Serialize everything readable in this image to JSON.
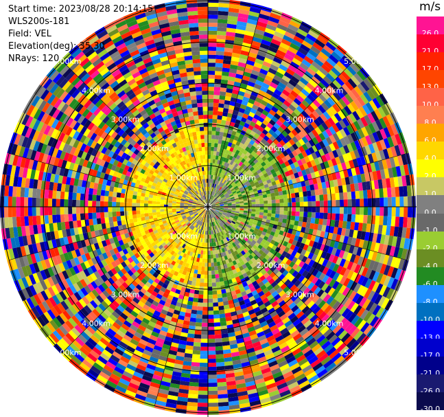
{
  "header": {
    "start_time": "Start time: 2023/08/28 20:14:15",
    "instrument": "WLS200s-181",
    "field": "Field: VEL",
    "elevation": "Elevation(deg): 35.30",
    "nrays": "NRays: 120"
  },
  "colorbar": {
    "unit": "m/s",
    "levels": [
      {
        "label": "26.0",
        "color": "#ff1493"
      },
      {
        "label": "21.0",
        "color": "#ff0033"
      },
      {
        "label": "17.0",
        "color": "#ff2200"
      },
      {
        "label": "13.0",
        "color": "#ff4500"
      },
      {
        "label": "10.0",
        "color": "#ff6347"
      },
      {
        "label": "8.0",
        "color": "#ff7f50"
      },
      {
        "label": "6.0",
        "color": "#ffa500"
      },
      {
        "label": "4.0",
        "color": "#ffd700"
      },
      {
        "label": "2.0",
        "color": "#ffff00"
      },
      {
        "label": "1.0",
        "color": "#c8c864"
      },
      {
        "label": "0.0",
        "color": "#808080"
      },
      {
        "label": "-1.0",
        "color": "#696969"
      },
      {
        "label": "-2.0",
        "color": "#9acd32"
      },
      {
        "label": "-4.0",
        "color": "#6b8e23"
      },
      {
        "label": "-6.0",
        "color": "#228b22"
      },
      {
        "label": "-8.0",
        "color": "#1e90ff"
      },
      {
        "label": "-10.0",
        "color": "#0070c0"
      },
      {
        "label": "-13.0",
        "color": "#0000ff"
      },
      {
        "label": "-17.0",
        "color": "#0000cd"
      },
      {
        "label": "-21.0",
        "color": "#00008b"
      },
      {
        "label": "-26.0",
        "color": "#191970"
      },
      {
        "label": "-30.0",
        "color": "#0b0b4d"
      }
    ]
  },
  "chart_data": {
    "type": "heatmap",
    "projection": "polar-ppi",
    "field": "VEL",
    "elevation_deg": 35.3,
    "n_rays": 120,
    "range_rings": [
      "1.00km",
      "2.00km",
      "3.00km",
      "4.00km",
      "5.00km"
    ],
    "inner_region": {
      "west_half_velocity_ms": [
        1.0,
        4.0
      ],
      "east_half_velocity_ms": [
        -6.0,
        -1.0
      ]
    },
    "outer_region": "noise (random values across full color scale)"
  }
}
